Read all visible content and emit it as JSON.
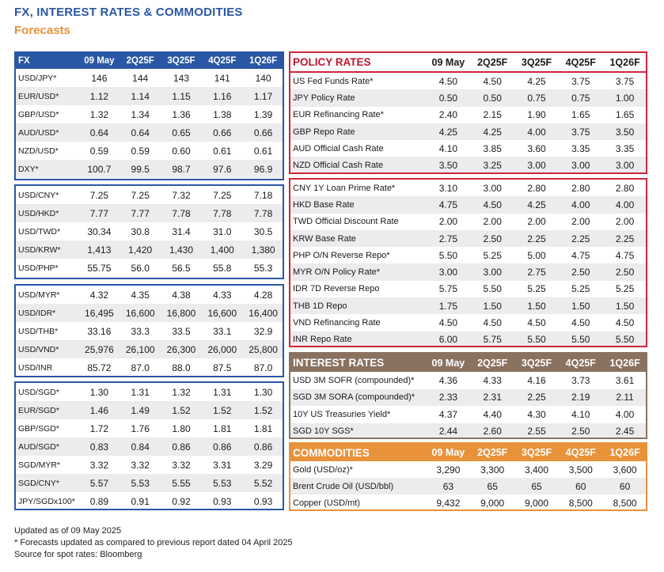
{
  "title": "FX, INTEREST RATES & COMMODITIES",
  "subtitle": "Forecasts",
  "columns": [
    "09 May",
    "2Q25F",
    "3Q25F",
    "4Q25F",
    "1Q26F"
  ],
  "fx": {
    "header": "FX",
    "groups": [
      [
        [
          "USD/JPY*",
          "146",
          "144",
          "143",
          "141",
          "140"
        ],
        [
          "EUR/USD*",
          "1.12",
          "1.14",
          "1.15",
          "1.16",
          "1.17"
        ],
        [
          "GBP/USD*",
          "1.32",
          "1.34",
          "1.36",
          "1.38",
          "1.39"
        ],
        [
          "AUD/USD*",
          "0.64",
          "0.64",
          "0.65",
          "0.66",
          "0.66"
        ],
        [
          "NZD/USD*",
          "0.59",
          "0.59",
          "0.60",
          "0.61",
          "0.61"
        ],
        [
          "DXY*",
          "100.7",
          "99.5",
          "98.7",
          "97.6",
          "96.9"
        ]
      ],
      [
        [
          "USD/CNY*",
          "7.25",
          "7.25",
          "7.32",
          "7.25",
          "7.18"
        ],
        [
          "USD/HKD*",
          "7.77",
          "7.77",
          "7.78",
          "7.78",
          "7.78"
        ],
        [
          "USD/TWD*",
          "30.34",
          "30.8",
          "31.4",
          "31.0",
          "30.5"
        ],
        [
          "USD/KRW*",
          "1,413",
          "1,420",
          "1,430",
          "1,400",
          "1,380"
        ],
        [
          "USD/PHP*",
          "55.75",
          "56.0",
          "56.5",
          "55.8",
          "55.3"
        ]
      ],
      [
        [
          "USD/MYR*",
          "4.32",
          "4.35",
          "4.38",
          "4.33",
          "4.28"
        ],
        [
          "USD/IDR*",
          "16,495",
          "16,600",
          "16,800",
          "16,600",
          "16,400"
        ],
        [
          "USD/THB*",
          "33.16",
          "33.3",
          "33.5",
          "33.1",
          "32.9"
        ],
        [
          "USD/VND*",
          "25,976",
          "26,100",
          "26,300",
          "26,000",
          "25,800"
        ],
        [
          "USD/INR",
          "85.72",
          "87.0",
          "88.0",
          "87.5",
          "87.0"
        ]
      ],
      [
        [
          "USD/SGD*",
          "1.30",
          "1.31",
          "1.32",
          "1.31",
          "1.30"
        ],
        [
          "EUR/SGD*",
          "1.46",
          "1.49",
          "1.52",
          "1.52",
          "1.52"
        ],
        [
          "GBP/SGD*",
          "1.72",
          "1.76",
          "1.80",
          "1.81",
          "1.81"
        ],
        [
          "AUD/SGD*",
          "0.83",
          "0.84",
          "0.86",
          "0.86",
          "0.86"
        ],
        [
          "SGD/MYR*",
          "3.32",
          "3.32",
          "3.32",
          "3.31",
          "3.29"
        ],
        [
          "SGD/CNY*",
          "5.57",
          "5.53",
          "5.55",
          "5.53",
          "5.52"
        ],
        [
          "JPY/SGDx100*",
          "0.89",
          "0.91",
          "0.92",
          "0.93",
          "0.93"
        ]
      ]
    ]
  },
  "policy": {
    "header": "POLICY RATES",
    "groups": [
      [
        [
          "US Fed Funds Rate*",
          "4.50",
          "4.50",
          "4.25",
          "3.75",
          "3.75"
        ],
        [
          "JPY Policy Rate",
          "0.50",
          "0.50",
          "0.75",
          "0.75",
          "1.00"
        ],
        [
          "EUR Refinancing Rate*",
          "2.40",
          "2.15",
          "1.90",
          "1.65",
          "1.65"
        ],
        [
          "GBP Repo Rate",
          "4.25",
          "4.25",
          "4.00",
          "3.75",
          "3.50"
        ],
        [
          "AUD Official Cash Rate",
          "4.10",
          "3.85",
          "3.60",
          "3.35",
          "3.35"
        ],
        [
          "NZD Official Cash Rate",
          "3.50",
          "3.25",
          "3.00",
          "3.00",
          "3.00"
        ]
      ],
      [
        [
          "CNY 1Y Loan Prime Rate*",
          "3.10",
          "3.00",
          "2.80",
          "2.80",
          "2.80"
        ],
        [
          "HKD Base Rate",
          "4.75",
          "4.50",
          "4.25",
          "4.00",
          "4.00"
        ],
        [
          "TWD Official Discount Rate",
          "2.00",
          "2.00",
          "2.00",
          "2.00",
          "2.00"
        ],
        [
          "KRW Base Rate",
          "2.75",
          "2.50",
          "2.25",
          "2.25",
          "2.25"
        ],
        [
          "PHP O/N Reverse Repo*",
          "5.50",
          "5.25",
          "5.00",
          "4.75",
          "4.75"
        ],
        [
          "MYR O/N Policy Rate*",
          "3.00",
          "3.00",
          "2.75",
          "2.50",
          "2.50"
        ],
        [
          "IDR 7D Reverse Repo",
          "5.75",
          "5.50",
          "5.25",
          "5.25",
          "5.25"
        ],
        [
          "THB 1D Repo",
          "1.75",
          "1.50",
          "1.50",
          "1.50",
          "1.50"
        ],
        [
          "VND Refinancing Rate",
          "4.50",
          "4.50",
          "4.50",
          "4.50",
          "4.50"
        ],
        [
          "INR Repo Rate",
          "6.00",
          "5.75",
          "5.50",
          "5.50",
          "5.50"
        ]
      ]
    ]
  },
  "interest": {
    "header": "INTEREST RATES",
    "rows": [
      [
        "USD 3M SOFR (compounded)*",
        "4.36",
        "4.33",
        "4.16",
        "3.73",
        "3.61"
      ],
      [
        "SGD 3M SORA (compounded)*",
        "2.33",
        "2.31",
        "2.25",
        "2.19",
        "2.11"
      ],
      [
        "10Y US Treasuries Yield*",
        "4.37",
        "4.40",
        "4.30",
        "4.10",
        "4.00"
      ],
      [
        "SGD 10Y SGS*",
        "2.44",
        "2.60",
        "2.55",
        "2.50",
        "2.45"
      ]
    ]
  },
  "commodities": {
    "header": "COMMODITIES",
    "rows": [
      [
        "Gold (USD/oz)*",
        "3,290",
        "3,300",
        "3,400",
        "3,500",
        "3,600"
      ],
      [
        "Brent Crude Oil (USD/bbl)",
        "63",
        "65",
        "65",
        "60",
        "60"
      ],
      [
        "Copper (USD/mt)",
        "9,432",
        "9,000",
        "9,000",
        "8,500",
        "8,500"
      ]
    ]
  },
  "notes": [
    "Updated as of 09 May 2025",
    "* Forecasts updated as compared to previous report dated 04 April 2025",
    "Source for spot rates: Bloomberg"
  ],
  "colors": {
    "fx": "#2a57a5",
    "policy": "#d0243b",
    "interest": "#8a7260",
    "commodities": "#e8923a",
    "title": "#2a57a5",
    "subtitle": "#e8923a"
  }
}
